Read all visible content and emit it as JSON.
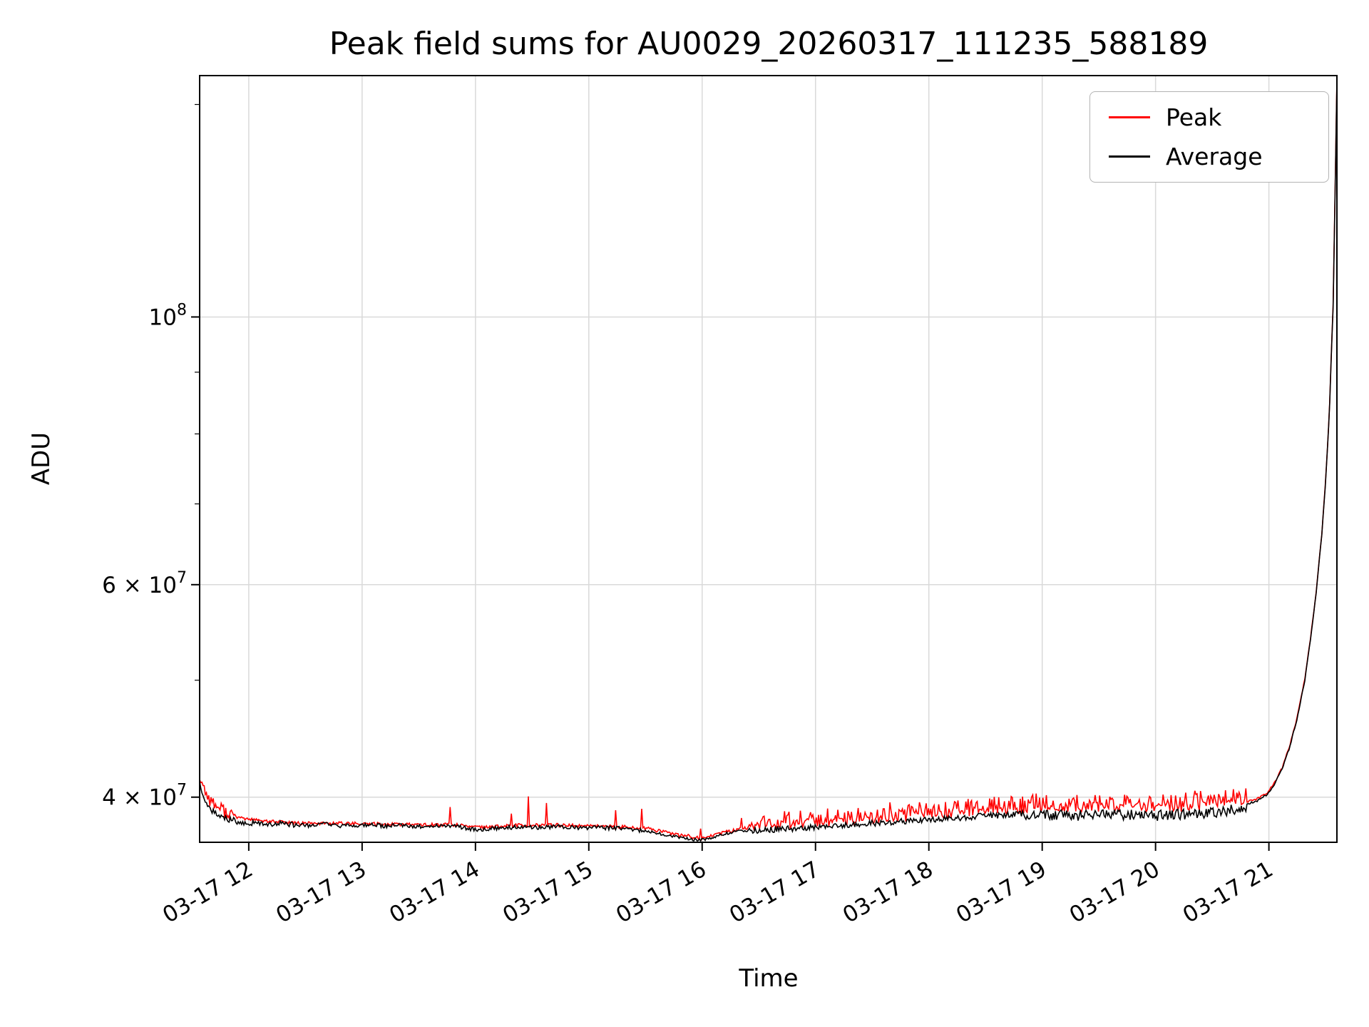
{
  "figure": {
    "background": "#ffffff",
    "grid_color": "#d9d9d9",
    "spine_color": "#000000"
  },
  "chart_data": {
    "type": "line",
    "title": "Peak field sums for AU0029_20260317_111235_588189",
    "xlabel": "Time",
    "ylabel": "ADU",
    "yscale": "log",
    "grid": true,
    "x_unit": "minutes after 03-17 00:00",
    "value_scale": 10000000,
    "xlim": [
      694,
      1296
    ],
    "ylim": [
      36700000,
      158500000
    ],
    "sample_step": 0.6,
    "xticks": [
      {
        "t": 720,
        "label": "03-17 12"
      },
      {
        "t": 780,
        "label": "03-17 13"
      },
      {
        "t": 840,
        "label": "03-17 14"
      },
      {
        "t": 900,
        "label": "03-17 15"
      },
      {
        "t": 960,
        "label": "03-17 16"
      },
      {
        "t": 1020,
        "label": "03-17 17"
      },
      {
        "t": 1080,
        "label": "03-17 18"
      },
      {
        "t": 1140,
        "label": "03-17 19"
      },
      {
        "t": 1200,
        "label": "03-17 20"
      },
      {
        "t": 1260,
        "label": "03-17 21"
      }
    ],
    "yticks": [
      {
        "v": 40000000,
        "base": "4 × 10",
        "exp": "7"
      },
      {
        "v": 60000000,
        "base": "6 × 10",
        "exp": "7"
      },
      {
        "v": 100000000,
        "base": "10",
        "exp": "8"
      }
    ],
    "minor_yticks": [
      50000000,
      70000000,
      80000000,
      90000000,
      150000000
    ],
    "legend": {
      "position": "top-right",
      "entries": [
        {
          "label": "Peak",
          "color": "#ff0000"
        },
        {
          "label": "Average",
          "color": "#000000"
        }
      ]
    },
    "series": [
      {
        "name": "Peak",
        "color": "#ff0000",
        "points": [
          [
            694,
            4.16
          ],
          [
            696,
            4.08
          ],
          [
            699,
            3.99
          ],
          [
            703,
            3.93
          ],
          [
            708,
            3.89
          ],
          [
            714,
            3.85
          ],
          [
            722,
            3.83
          ],
          [
            735,
            3.815
          ],
          [
            750,
            3.805
          ],
          [
            770,
            3.805
          ],
          [
            790,
            3.8
          ],
          [
            810,
            3.795
          ],
          [
            830,
            3.795
          ],
          [
            845,
            3.775
          ],
          [
            860,
            3.79
          ],
          [
            880,
            3.795
          ],
          [
            900,
            3.785
          ],
          [
            920,
            3.78
          ],
          [
            932,
            3.765
          ],
          [
            944,
            3.73
          ],
          [
            952,
            3.715
          ],
          [
            958,
            3.7
          ],
          [
            964,
            3.71
          ],
          [
            972,
            3.74
          ],
          [
            980,
            3.765
          ],
          [
            990,
            3.78
          ],
          [
            1000,
            3.785
          ],
          [
            1010,
            3.79
          ],
          [
            1020,
            3.795
          ],
          [
            1035,
            3.805
          ],
          [
            1050,
            3.82
          ],
          [
            1065,
            3.835
          ],
          [
            1080,
            3.85
          ],
          [
            1095,
            3.865
          ],
          [
            1110,
            3.88
          ],
          [
            1125,
            3.89
          ],
          [
            1140,
            3.9
          ],
          [
            1155,
            3.91
          ],
          [
            1170,
            3.905
          ],
          [
            1185,
            3.91
          ],
          [
            1200,
            3.905
          ],
          [
            1215,
            3.91
          ],
          [
            1230,
            3.925
          ],
          [
            1240,
            3.94
          ],
          [
            1248,
            3.96
          ],
          [
            1254,
            3.99
          ],
          [
            1259,
            4.03
          ],
          [
            1263,
            4.11
          ],
          [
            1267,
            4.23
          ],
          [
            1271,
            4.41
          ],
          [
            1275,
            4.66
          ],
          [
            1279,
            5.01
          ],
          [
            1282,
            5.41
          ],
          [
            1285,
            5.91
          ],
          [
            1288,
            6.61
          ],
          [
            1290,
            7.31
          ],
          [
            1292,
            8.31
          ],
          [
            1294,
            10.25
          ],
          [
            1295,
            12.55
          ],
          [
            1296,
            15.75
          ]
        ],
        "noise": [
          {
            "from": 694,
            "to": 712,
            "amp": 0.05
          },
          {
            "from": 712,
            "to": 985,
            "amp": 0.012
          },
          {
            "from": 985,
            "to": 1248,
            "amp": 0.03,
            "bias": 0.01
          },
          {
            "from": 1248,
            "to": 1297,
            "amp": 0.008
          }
        ],
        "spikes": [
          {
            "from": 715,
            "to": 940,
            "prob": 0.02,
            "min": 0.06,
            "max": 0.22
          },
          {
            "from": 940,
            "to": 990,
            "prob": 0.08,
            "min": 0.04,
            "max": 0.14
          },
          {
            "from": 990,
            "to": 1248,
            "prob": 0.45,
            "min": 0.02,
            "max": 0.1
          }
        ]
      },
      {
        "name": "Average",
        "color": "#000000",
        "points": [
          [
            694,
            4.12
          ],
          [
            695,
            4.05
          ],
          [
            697,
            3.97
          ],
          [
            699,
            3.92
          ],
          [
            702,
            3.88
          ],
          [
            706,
            3.85
          ],
          [
            711,
            3.83
          ],
          [
            718,
            3.815
          ],
          [
            726,
            3.805
          ],
          [
            735,
            3.8
          ],
          [
            744,
            3.795
          ],
          [
            752,
            3.79
          ],
          [
            760,
            3.8
          ],
          [
            768,
            3.785
          ],
          [
            776,
            3.79
          ],
          [
            784,
            3.795
          ],
          [
            792,
            3.785
          ],
          [
            800,
            3.79
          ],
          [
            808,
            3.78
          ],
          [
            816,
            3.785
          ],
          [
            824,
            3.79
          ],
          [
            832,
            3.78
          ],
          [
            838,
            3.765
          ],
          [
            844,
            3.76
          ],
          [
            850,
            3.77
          ],
          [
            858,
            3.775
          ],
          [
            866,
            3.78
          ],
          [
            874,
            3.775
          ],
          [
            882,
            3.78
          ],
          [
            890,
            3.775
          ],
          [
            898,
            3.77
          ],
          [
            906,
            3.775
          ],
          [
            914,
            3.77
          ],
          [
            922,
            3.765
          ],
          [
            930,
            3.75
          ],
          [
            938,
            3.73
          ],
          [
            944,
            3.715
          ],
          [
            950,
            3.7
          ],
          [
            955,
            3.69
          ],
          [
            959,
            3.685
          ],
          [
            963,
            3.695
          ],
          [
            968,
            3.715
          ],
          [
            974,
            3.735
          ],
          [
            980,
            3.75
          ],
          [
            988,
            3.76
          ],
          [
            996,
            3.765
          ],
          [
            1004,
            3.77
          ],
          [
            1012,
            3.775
          ],
          [
            1020,
            3.78
          ],
          [
            1030,
            3.79
          ],
          [
            1040,
            3.8
          ],
          [
            1050,
            3.81
          ],
          [
            1060,
            3.82
          ],
          [
            1070,
            3.83
          ],
          [
            1080,
            3.835
          ],
          [
            1090,
            3.845
          ],
          [
            1100,
            3.855
          ],
          [
            1110,
            3.865
          ],
          [
            1120,
            3.87
          ],
          [
            1130,
            3.88
          ],
          [
            1140,
            3.885
          ],
          [
            1150,
            3.89
          ],
          [
            1158,
            3.885
          ],
          [
            1166,
            3.88
          ],
          [
            1174,
            3.885
          ],
          [
            1182,
            3.89
          ],
          [
            1190,
            3.885
          ],
          [
            1198,
            3.88
          ],
          [
            1206,
            3.885
          ],
          [
            1214,
            3.89
          ],
          [
            1222,
            3.895
          ],
          [
            1230,
            3.905
          ],
          [
            1238,
            3.92
          ],
          [
            1244,
            3.935
          ],
          [
            1250,
            3.955
          ],
          [
            1255,
            3.98
          ],
          [
            1259,
            4.02
          ],
          [
            1263,
            4.1
          ],
          [
            1267,
            4.22
          ],
          [
            1271,
            4.4
          ],
          [
            1275,
            4.65
          ],
          [
            1279,
            5.0
          ],
          [
            1282,
            5.4
          ],
          [
            1285,
            5.9
          ],
          [
            1288,
            6.6
          ],
          [
            1290,
            7.3
          ],
          [
            1292,
            8.3
          ],
          [
            1294,
            10.2
          ],
          [
            1295,
            12.5
          ],
          [
            1296,
            15.7
          ]
        ],
        "noise": [
          {
            "from": 694,
            "to": 700,
            "amp": 0.012
          },
          {
            "from": 700,
            "to": 745,
            "amp": 0.025
          },
          {
            "from": 745,
            "to": 930,
            "amp": 0.015
          },
          {
            "from": 930,
            "to": 985,
            "amp": 0.01
          },
          {
            "from": 985,
            "to": 1130,
            "amp": 0.022,
            "bias": -0.005
          },
          {
            "from": 1130,
            "to": 1248,
            "amp": 0.04,
            "bias": -0.02
          },
          {
            "from": 1248,
            "to": 1297,
            "amp": 0.008
          }
        ],
        "spikes": []
      }
    ]
  }
}
